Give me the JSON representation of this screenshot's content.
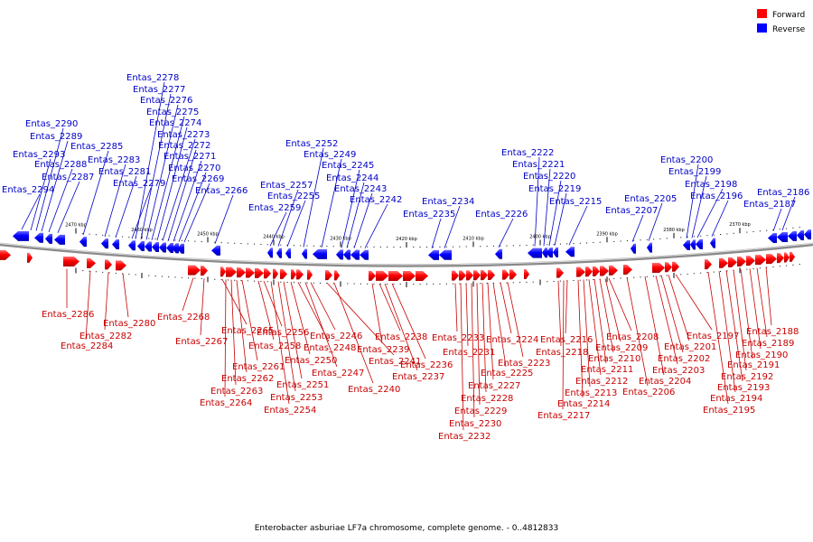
{
  "legend": {
    "forward": {
      "label": "Forward",
      "color": "#ff0000"
    },
    "reverse": {
      "label": "Reverse",
      "color": "#0000ff"
    }
  },
  "caption": "Enterobacter asburiae LF7a chromosome, complete genome. - 0..4812833",
  "scale_ticks": [
    "2470 kbp",
    "2460 kbp",
    "2450 kbp",
    "2440 kbp",
    "2430 kbp",
    "2420 kbp",
    "2410 kbp",
    "2400 kbp",
    "2390 kbp",
    "2380 kbp",
    "2370 kbp"
  ],
  "reverse_genes": [
    "Entas_2294",
    "Entas_2293",
    "Entas_2290",
    "Entas_2289",
    "Entas_2288",
    "Entas_2287",
    "Entas_2285",
    "Entas_2283",
    "Entas_2281",
    "Entas_2279",
    "Entas_2278",
    "Entas_2277",
    "Entas_2276",
    "Entas_2275",
    "Entas_2274",
    "Entas_2273",
    "Entas_2272",
    "Entas_2271",
    "Entas_2270",
    "Entas_2269",
    "Entas_2266",
    "Entas_2259",
    "Entas_2257",
    "Entas_2255",
    "Entas_2252",
    "Entas_2249",
    "Entas_2245",
    "Entas_2244",
    "Entas_2243",
    "Entas_2242",
    "Entas_2235",
    "Entas_2234",
    "Entas_2226",
    "Entas_2222",
    "Entas_2221",
    "Entas_2220",
    "Entas_2219",
    "Entas_2215",
    "Entas_2207",
    "Entas_2205",
    "Entas_2200",
    "Entas_2199",
    "Entas_2198",
    "Entas_2196",
    "Entas_2187",
    "Entas_2186"
  ],
  "forward_genes": [
    "Entas_2286",
    "Entas_2284",
    "Entas_2282",
    "Entas_2280",
    "Entas_2268",
    "Entas_2267",
    "Entas_2265",
    "Entas_2264",
    "Entas_2263",
    "Entas_2262",
    "Entas_2261",
    "Entas_2258",
    "Entas_2256",
    "Entas_2254",
    "Entas_2253",
    "Entas_2251",
    "Entas_2250",
    "Entas_2248",
    "Entas_2247",
    "Entas_2246",
    "Entas_2241",
    "Entas_2240",
    "Entas_2239",
    "Entas_2238",
    "Entas_2237",
    "Entas_2236",
    "Entas_2233",
    "Entas_2232",
    "Entas_2231",
    "Entas_2230",
    "Entas_2229",
    "Entas_2228",
    "Entas_2227",
    "Entas_2225",
    "Entas_2224",
    "Entas_2223",
    "Entas_2218",
    "Entas_2217",
    "Entas_2216",
    "Entas_2214",
    "Entas_2213",
    "Entas_2212",
    "Entas_2211",
    "Entas_2210",
    "Entas_2209",
    "Entas_2208",
    "Entas_2206",
    "Entas_2204",
    "Entas_2203",
    "Entas_2202",
    "Entas_2201",
    "Entas_2197",
    "Entas_2195",
    "Entas_2194",
    "Entas_2193",
    "Entas_2192",
    "Entas_2191",
    "Entas_2190",
    "Entas_2189",
    "Entas_2188"
  ]
}
